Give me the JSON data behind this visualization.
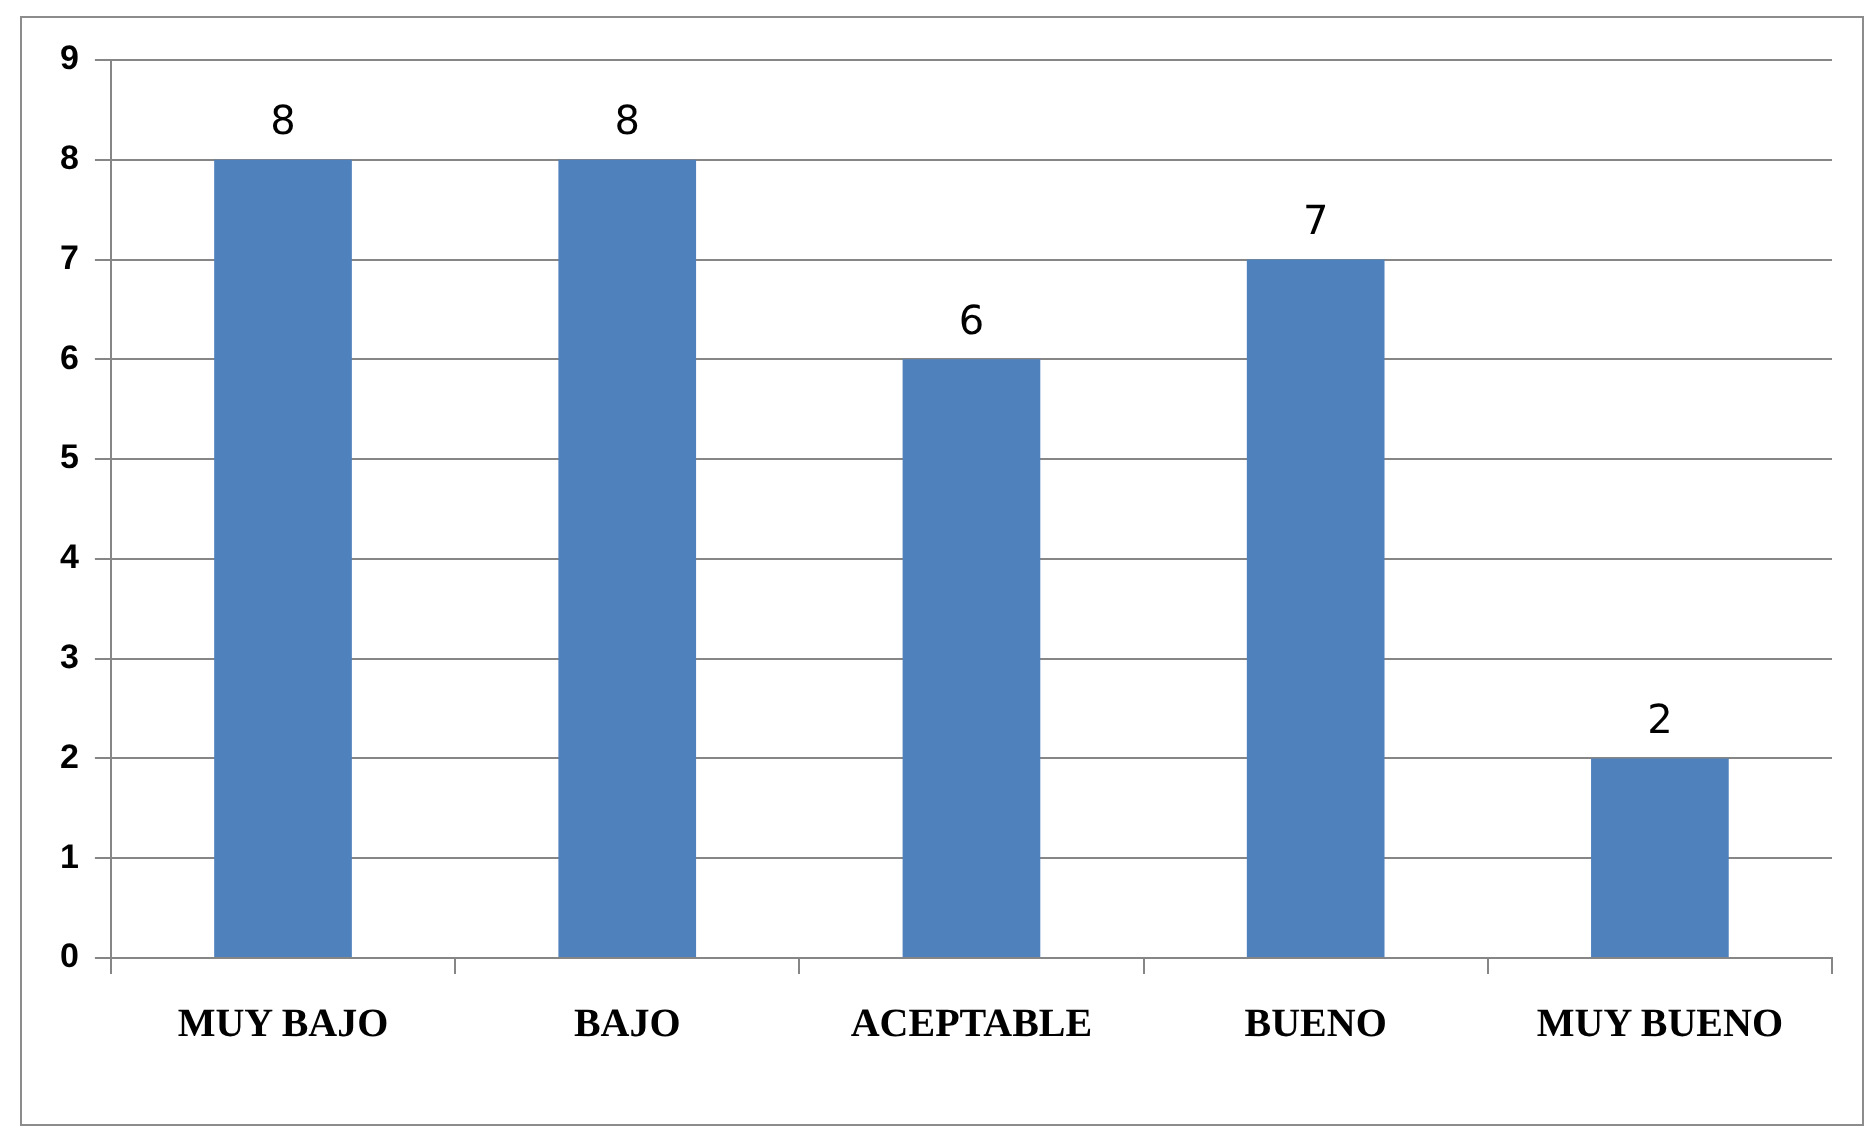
{
  "chart_data": {
    "type": "bar",
    "categories": [
      "MUY BAJO",
      "BAJO",
      "ACEPTABLE",
      "BUENO",
      "MUY BUENO"
    ],
    "values": [
      8,
      8,
      6,
      7,
      2
    ],
    "color": "#4f81bd",
    "ylim": [
      0,
      9
    ],
    "yticks": [
      0,
      1,
      2,
      3,
      4,
      5,
      6,
      7,
      8,
      9
    ],
    "grid": "y",
    "data_labels": true,
    "legend": false
  }
}
